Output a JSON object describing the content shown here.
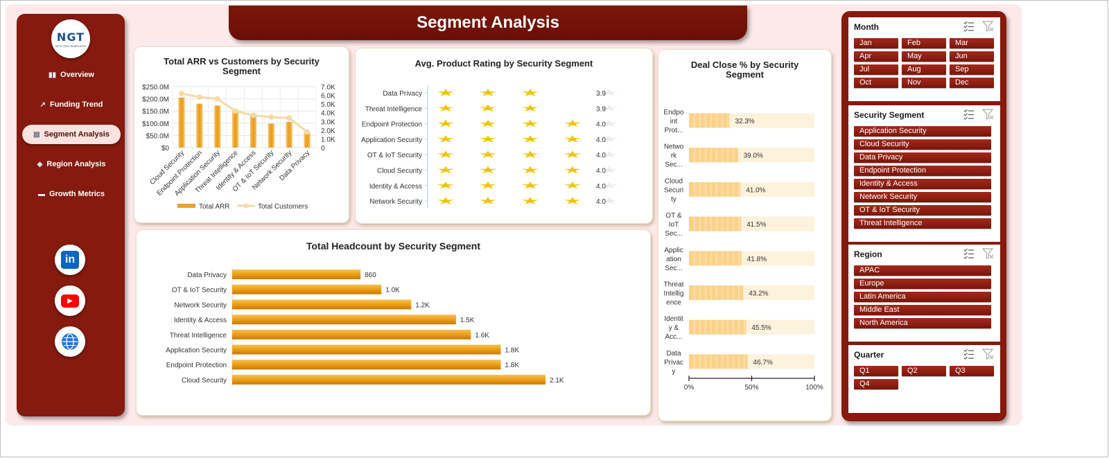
{
  "title": "Segment Analysis",
  "logo": {
    "text": "NGT",
    "subtext": "NEXT GEN TEMPLATES"
  },
  "nav": [
    {
      "label": "Overview",
      "icon": "bar-chart-icon"
    },
    {
      "label": "Funding Trend",
      "icon": "trend-chart-icon"
    },
    {
      "label": "Segment Analysis",
      "icon": "document-icon",
      "active": true
    },
    {
      "label": "Region Analysis",
      "icon": "world-map-icon"
    },
    {
      "label": "Growth Metrics",
      "icon": "folder-icon"
    }
  ],
  "social": [
    {
      "name": "linkedin-icon",
      "text": "in",
      "color": "#0a66c2"
    },
    {
      "name": "youtube-icon",
      "text": "▶",
      "color": "#ff0000"
    },
    {
      "name": "website-globe-icon",
      "text": "",
      "color": "#2277d6"
    }
  ],
  "colors": {
    "accent": "#861a0e",
    "bar": "#f0a830",
    "line": "#f6d9a5",
    "star": "#f2c200",
    "bullet": "#fbd28a",
    "bullet_bg": "#fdf2dc"
  },
  "chart_data": [
    {
      "id": "arr_customers",
      "type": "bar",
      "title": "Total ARR vs Customers by Security Segment",
      "categories": [
        "Cloud Security",
        "Endpoint Protection",
        "Application Security",
        "Threat Intelligence",
        "Identity & Access",
        "OT & IoT Security",
        "Network Security",
        "Data Privacy"
      ],
      "series": [
        {
          "name": "Total ARR",
          "type": "bar",
          "axis": "left",
          "values": [
            205000000,
            180000000,
            172000000,
            153000000,
            138000000,
            98000000,
            105000000,
            62000000
          ]
        },
        {
          "name": "Total Customers",
          "type": "line",
          "axis": "right",
          "values": [
            6200,
            5800,
            5600,
            4200,
            3700,
            3500,
            3400,
            1800
          ]
        }
      ],
      "ylim": [
        0,
        250000000
      ],
      "y2lim": [
        0,
        7000
      ],
      "yticks": [
        "$0",
        "$50.0M",
        "$100.0M",
        "$150.0M",
        "$200.0M",
        "$250.0M"
      ],
      "y2ticks": [
        "0",
        "1.0K",
        "2.0K",
        "3.0K",
        "4.0K",
        "5.0K",
        "6.0K",
        "7.0K"
      ],
      "grid": true,
      "legend": "bottom"
    },
    {
      "id": "rating",
      "type": "bar",
      "title": "Avg. Product Rating by Security Segment",
      "categories": [
        "Data Privacy",
        "Threat Intelligence",
        "Endpoint Protection",
        "Application Security",
        "OT & IoT Security",
        "Cloud Security",
        "Identity & Access",
        "Network Security"
      ],
      "values": [
        3.9,
        3.9,
        4.0,
        4.0,
        4.0,
        4.0,
        4.0,
        4.0
      ],
      "labels": [
        "3.9",
        "3.9",
        "4.0",
        "4.0",
        "4.0",
        "4.0",
        "4.0",
        "4.0"
      ],
      "max_stars": 5
    },
    {
      "id": "deal_close",
      "type": "bar",
      "title": "Deal Close % by Security Segment",
      "categories": [
        [
          "Endpo",
          "int",
          "Prot..."
        ],
        [
          "Netwo",
          "rk",
          "Sec..."
        ],
        [
          "Cloud",
          "Securi",
          "ty"
        ],
        [
          "OT &",
          "IoT",
          "Sec..."
        ],
        [
          "Applic",
          "ation",
          "Sec..."
        ],
        [
          "Threat",
          "Intellig",
          "ence"
        ],
        [
          "Identit",
          "y &",
          "Acc..."
        ],
        [
          "Data",
          "Privac",
          "y"
        ]
      ],
      "values": [
        32.3,
        39.0,
        41.0,
        41.5,
        41.8,
        43.2,
        45.5,
        46.7
      ],
      "labels": [
        "32.3%",
        "39.0%",
        "41.0%",
        "41.5%",
        "41.8%",
        "43.2%",
        "45.5%",
        "46.7%"
      ],
      "xlim": [
        0,
        100
      ],
      "xticks": [
        "0%",
        "50%",
        "100%"
      ]
    },
    {
      "id": "headcount",
      "type": "bar",
      "title": "Total Headcount by Security Segment",
      "categories": [
        "Data Privacy",
        "OT & IoT Security",
        "Network Security",
        "Identity & Access",
        "Threat Intelligence",
        "Application Security",
        "Endpoint Protection",
        "Cloud Security"
      ],
      "values": [
        860,
        1000,
        1200,
        1500,
        1600,
        1800,
        1800,
        2100
      ],
      "labels": [
        "860",
        "1.0K",
        "1.2K",
        "1.5K",
        "1.6K",
        "1.8K",
        "1.8K",
        "2.1K"
      ],
      "xlim": [
        0,
        2400
      ]
    }
  ],
  "slicers": [
    {
      "title": "Month",
      "columns": 3,
      "items": [
        "Jan",
        "Feb",
        "Mar",
        "Apr",
        "May",
        "Jun",
        "Jul",
        "Aug",
        "Sep",
        "Oct",
        "Nov",
        "Dec"
      ]
    },
    {
      "title": "Security Segment",
      "columns": 1,
      "items": [
        "Application Security",
        "Cloud Security",
        "Data Privacy",
        "Endpoint Protection",
        "Identity & Access",
        "Network Security",
        "OT & IoT Security",
        "Threat Intelligence"
      ]
    },
    {
      "title": "Region",
      "columns": 1,
      "items": [
        "APAC",
        "Europe",
        "Latin America",
        "Middle East",
        "North America"
      ]
    },
    {
      "title": "Quarter",
      "columns": 3,
      "items": [
        "Q1",
        "Q2",
        "Q3",
        "Q4"
      ]
    }
  ]
}
